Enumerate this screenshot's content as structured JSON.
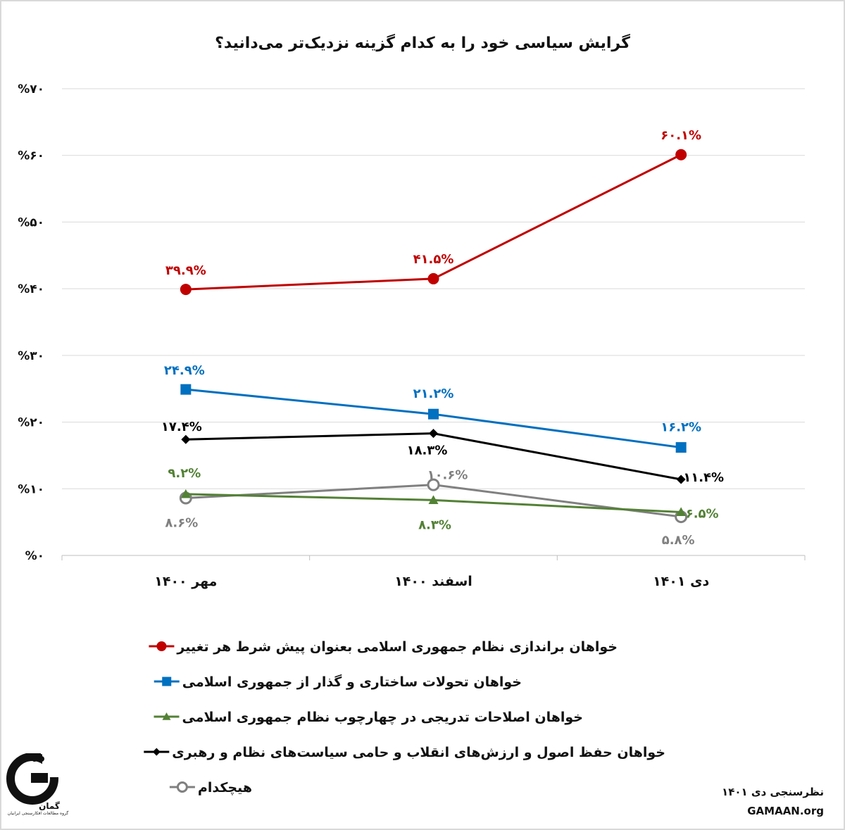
{
  "chart_data": {
    "type": "line",
    "title": "گرایش سیاسی خود را به کدام گزینه نزدیک‌تر می‌دانید؟",
    "categories": [
      "مهر ۱۴۰۰",
      "اسفند ۱۴۰۰",
      "دی ۱۴۰۱"
    ],
    "ylim": [
      0,
      70
    ],
    "yticks": [
      0,
      10,
      20,
      30,
      40,
      50,
      60,
      70
    ],
    "ytick_labels": [
      "%۰",
      "%۱۰",
      "%۲۰",
      "%۳۰",
      "%۴۰",
      "%۵۰",
      "%۶۰",
      "%۷۰"
    ],
    "grid": true,
    "legend_position": "bottom",
    "series": [
      {
        "name": "خواهان براندازی نظام جمهوری اسلامی بعنوان پیش شرط هر تغییر",
        "color": "#c00000",
        "marker": "circle",
        "values": [
          39.9,
          41.5,
          60.1
        ],
        "labels": [
          "۳۹.۹%",
          "۴۱.۵%",
          "۶۰.۱%"
        ]
      },
      {
        "name": "خواهان تحولات ساختاری و گذار از جمهوری اسلامی",
        "color": "#0070c0",
        "marker": "square",
        "values": [
          24.9,
          21.2,
          16.2
        ],
        "labels": [
          "۲۴.۹%",
          "۲۱.۲%",
          "۱۶.۲%"
        ]
      },
      {
        "name": "خواهان اصلاحات تدریجی در چهارچوب نظام جمهوری اسلامی",
        "color": "#538135",
        "marker": "triangle",
        "values": [
          9.2,
          8.3,
          6.5
        ],
        "labels": [
          "۹.۲%",
          "۸.۳%",
          "۶.۵%"
        ]
      },
      {
        "name": "خواهان حفظ اصول و ارزش‌های انقلاب و حامی سیاست‌های نظام و رهبری",
        "color": "#000000",
        "marker": "diamond",
        "values": [
          17.4,
          18.3,
          11.4
        ],
        "labels": [
          "۱۷.۴%",
          "۱۸.۳%",
          "۱۱.۴%"
        ]
      },
      {
        "name": "هیچکدام",
        "color": "#808080",
        "marker": "open-circle",
        "values": [
          8.6,
          10.6,
          5.8
        ],
        "labels": [
          "۸.۶%",
          "۱۰.۶%",
          "۵.۸%"
        ]
      }
    ]
  },
  "footer": {
    "survey": "نظرسنجی دی ۱۴۰۱",
    "website": "GAMAAN.org"
  },
  "logo": {
    "name": "گمان",
    "subtitle": "گروه مطالعات افکارسنجی ایرانیان"
  }
}
